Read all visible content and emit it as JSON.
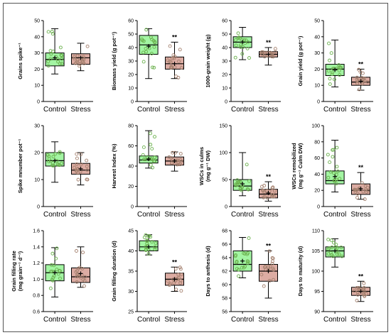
{
  "colors": {
    "control_fill": "#a3f5a3",
    "stress_fill": "#dcaca3",
    "control_dot": "#6ab04c",
    "stress_dot": "#a4806e",
    "outline": "#000000"
  },
  "chart_data": [
    {
      "type": "box",
      "ylabel": [
        "Grains spike⁻¹"
      ],
      "ylim": [
        0,
        50
      ],
      "yticks": [
        0,
        10,
        20,
        30,
        40,
        50
      ],
      "categories": [
        "Control",
        "Stress"
      ],
      "series": [
        {
          "q1": 22,
          "median": 26,
          "q3": 30,
          "min": 17,
          "max": 45,
          "mean": 27
        },
        {
          "q1": 23,
          "median": 27,
          "q3": 29.5,
          "min": 19,
          "max": 36,
          "mean": 27
        }
      ],
      "significance": ""
    },
    {
      "type": "box",
      "ylabel": [
        "Biomass yield (g pot⁻¹)"
      ],
      "ylim": [
        0,
        60
      ],
      "yticks": [
        0,
        10,
        20,
        30,
        40,
        50,
        60
      ],
      "categories": [
        "Control",
        "Stress"
      ],
      "series": [
        {
          "q1": 35,
          "median": 42,
          "q3": 49,
          "min": 17,
          "max": 54,
          "mean": 41
        },
        {
          "q1": 24,
          "median": 28,
          "q3": 33,
          "min": 17,
          "max": 44,
          "mean": 28
        }
      ],
      "significance": "**"
    },
    {
      "type": "box",
      "ylabel": [
        "1000-grain weight (g)"
      ],
      "ylim": [
        0,
        60
      ],
      "yticks": [
        0,
        10,
        20,
        30,
        40,
        50,
        60
      ],
      "categories": [
        "Control",
        "Stress"
      ],
      "series": [
        {
          "q1": 40,
          "median": 44,
          "q3": 48,
          "min": 31,
          "max": 55,
          "mean": 44
        },
        {
          "q1": 33,
          "median": 35,
          "q3": 37,
          "min": 27,
          "max": 40,
          "mean": 35
        }
      ],
      "significance": "**"
    },
    {
      "type": "box",
      "ylabel": [
        "Grain yield (g pot⁻¹)"
      ],
      "ylim": [
        0,
        50
      ],
      "yticks": [
        0,
        10,
        20,
        30,
        40,
        50
      ],
      "categories": [
        "Control",
        "Stress"
      ],
      "series": [
        {
          "q1": 16,
          "median": 20,
          "q3": 23,
          "min": 9,
          "max": 38,
          "mean": 19.5
        },
        {
          "q1": 10,
          "median": 12,
          "q3": 15,
          "min": 7,
          "max": 20,
          "mean": 12.5
        }
      ],
      "significance": "**"
    },
    {
      "type": "box",
      "ylabel": [
        "Spike mnumber pot⁻¹"
      ],
      "ylim": [
        0,
        30
      ],
      "yticks": [
        0,
        10,
        20,
        30
      ],
      "categories": [
        "Control",
        "Stress"
      ],
      "series": [
        {
          "q1": 15,
          "median": 17,
          "q3": 20,
          "min": 9,
          "max": 24,
          "mean": 17
        },
        {
          "q1": 12,
          "median": 13.5,
          "q3": 16,
          "min": 8,
          "max": 20,
          "mean": 14
        }
      ],
      "significance": ""
    },
    {
      "type": "box",
      "ylabel": [
        "Harvest Index (%)"
      ],
      "ylim": [
        0,
        80
      ],
      "yticks": [
        0,
        20,
        40,
        60,
        80
      ],
      "categories": [
        "Control",
        "Stress"
      ],
      "series": [
        {
          "q1": 43,
          "median": 46,
          "q3": 50,
          "min": 38,
          "max": 75,
          "mean": 47
        },
        {
          "q1": 41,
          "median": 45,
          "q3": 49,
          "min": 35,
          "max": 54,
          "mean": 45
        }
      ],
      "significance": ""
    },
    {
      "type": "box",
      "ylabel": [
        "WSCs in culms",
        "(mg g⁻¹ DW)"
      ],
      "ylim": [
        0,
        150
      ],
      "yticks": [
        0,
        50,
        100,
        150
      ],
      "categories": [
        "Control",
        "Stress"
      ],
      "series": [
        {
          "q1": 30,
          "median": 38,
          "q3": 50,
          "min": 20,
          "max": 100,
          "mean": 42
        },
        {
          "q1": 16,
          "median": 23,
          "q3": 32,
          "min": 10,
          "max": 46,
          "mean": 25
        }
      ],
      "significance": "**"
    },
    {
      "type": "box",
      "ylabel": [
        "WSCs remobilized",
        "(mg g⁻¹ Culm DW)"
      ],
      "ylim": [
        0,
        100
      ],
      "yticks": [
        0,
        20,
        40,
        60,
        80,
        100
      ],
      "categories": [
        "Control",
        "Stress"
      ],
      "series": [
        {
          "q1": 28,
          "median": 32,
          "q3": 44,
          "min": 18,
          "max": 82,
          "mean": 37
        },
        {
          "q1": 15,
          "median": 20,
          "q3": 28,
          "min": 9,
          "max": 42,
          "mean": 22
        }
      ],
      "significance": "**"
    },
    {
      "type": "box",
      "ylabel": [
        "Grain filling rate",
        "(mg grain⁻¹ d⁻¹)"
      ],
      "ylim": [
        0.6,
        1.6
      ],
      "yticks": [
        0.6,
        0.8,
        1.0,
        1.2,
        1.4,
        1.6
      ],
      "categories": [
        "Control",
        "Stress"
      ],
      "series": [
        {
          "q1": 0.98,
          "median": 1.08,
          "q3": 1.18,
          "min": 0.78,
          "max": 1.39,
          "mean": 1.08
        },
        {
          "q1": 0.96,
          "median": 1.03,
          "q3": 1.14,
          "min": 0.9,
          "max": 1.4,
          "mean": 1.07
        }
      ],
      "significance": ""
    },
    {
      "type": "box",
      "ylabel": [
        "Grain filling duration (d)"
      ],
      "ylim": [
        25,
        45
      ],
      "yticks": [
        25,
        30,
        35,
        40,
        45
      ],
      "categories": [
        "Control",
        "Stress"
      ],
      "series": [
        {
          "q1": 40,
          "median": 41,
          "q3": 42.5,
          "min": 39,
          "max": 44,
          "mean": 41
        },
        {
          "q1": 31.5,
          "median": 33,
          "q3": 34.5,
          "min": 30,
          "max": 36,
          "mean": 33
        }
      ],
      "significance": "**"
    },
    {
      "type": "box",
      "ylabel": [
        "Days to anthesis (d)"
      ],
      "ylim": [
        56,
        68
      ],
      "yticks": [
        56,
        58,
        60,
        62,
        64,
        66,
        68
      ],
      "categories": [
        "Control",
        "Stress"
      ],
      "series": [
        {
          "q1": 62,
          "median": 63,
          "q3": 65,
          "min": 61,
          "max": 67,
          "mean": 63.5
        },
        {
          "q1": 60.5,
          "median": 62,
          "q3": 63,
          "min": 58,
          "max": 65,
          "mean": 62
        }
      ],
      "significance": "**"
    },
    {
      "type": "box",
      "ylabel": [
        "Days to maturity (d)"
      ],
      "ylim": [
        90,
        110
      ],
      "yticks": [
        90,
        95,
        100,
        105,
        110
      ],
      "categories": [
        "Control",
        "Stress"
      ],
      "series": [
        {
          "q1": 103.5,
          "median": 105,
          "q3": 106,
          "min": 101,
          "max": 108,
          "mean": 105
        },
        {
          "q1": 94,
          "median": 95,
          "q3": 96,
          "min": 92.5,
          "max": 97.5,
          "mean": 95
        }
      ],
      "significance": "**"
    }
  ]
}
